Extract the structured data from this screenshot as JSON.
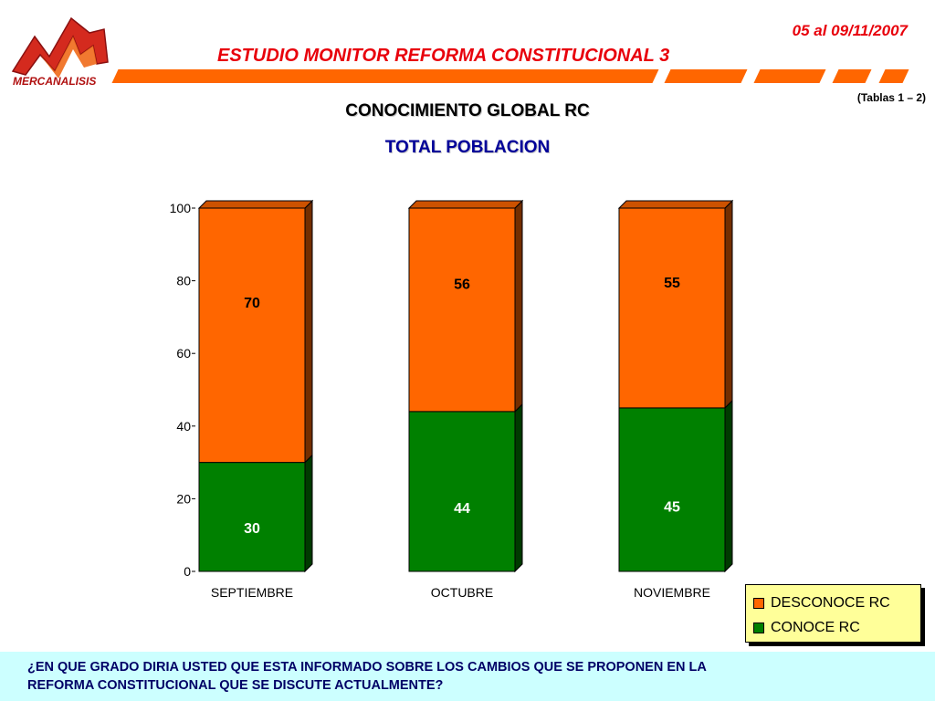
{
  "header": {
    "logo_text": "MERCANALISIS",
    "date": "05 al 09/11/2007",
    "title": "ESTUDIO MONITOR REFORMA CONSTITUCIONAL 3",
    "tables_ref": "(Tablas 1 – 2)"
  },
  "colors": {
    "brand_red": "#e8000b",
    "accent_orange": "#ff6600",
    "desconoce": "#ff6600",
    "conoce": "#008000",
    "legend_bg": "#ffff99",
    "footer_bg": "#ccffff"
  },
  "chart_data": {
    "type": "bar",
    "stacked": true,
    "title": "CONOCIMIENTO GLOBAL RC",
    "subtitle": "TOTAL POBLACION",
    "categories": [
      "SEPTIEMBRE",
      "OCTUBRE",
      "NOVIEMBRE"
    ],
    "series": [
      {
        "name": "CONOCE RC",
        "values": [
          30,
          44,
          45
        ],
        "color": "#008000"
      },
      {
        "name": "DESCONOCE RC",
        "values": [
          70,
          56,
          55
        ],
        "color": "#ff6600"
      }
    ],
    "ylim": [
      0,
      100
    ],
    "yticks": [
      0,
      20,
      40,
      60,
      80,
      100
    ],
    "legend_position": "bottom-right",
    "grid": false
  },
  "legend": {
    "items": [
      {
        "label": "DESCONOCE RC",
        "color": "#ff6600"
      },
      {
        "label": "CONOCE RC",
        "color": "#008000"
      }
    ]
  },
  "footer": {
    "question_line1": "¿EN QUE GRADO DIRIA USTED QUE ESTA INFORMADO SOBRE LOS CAMBIOS QUE SE PROPONEN EN LA",
    "question_line2": "REFORMA CONSTITUCIONAL QUE SE DISCUTE ACTUALMENTE?"
  }
}
